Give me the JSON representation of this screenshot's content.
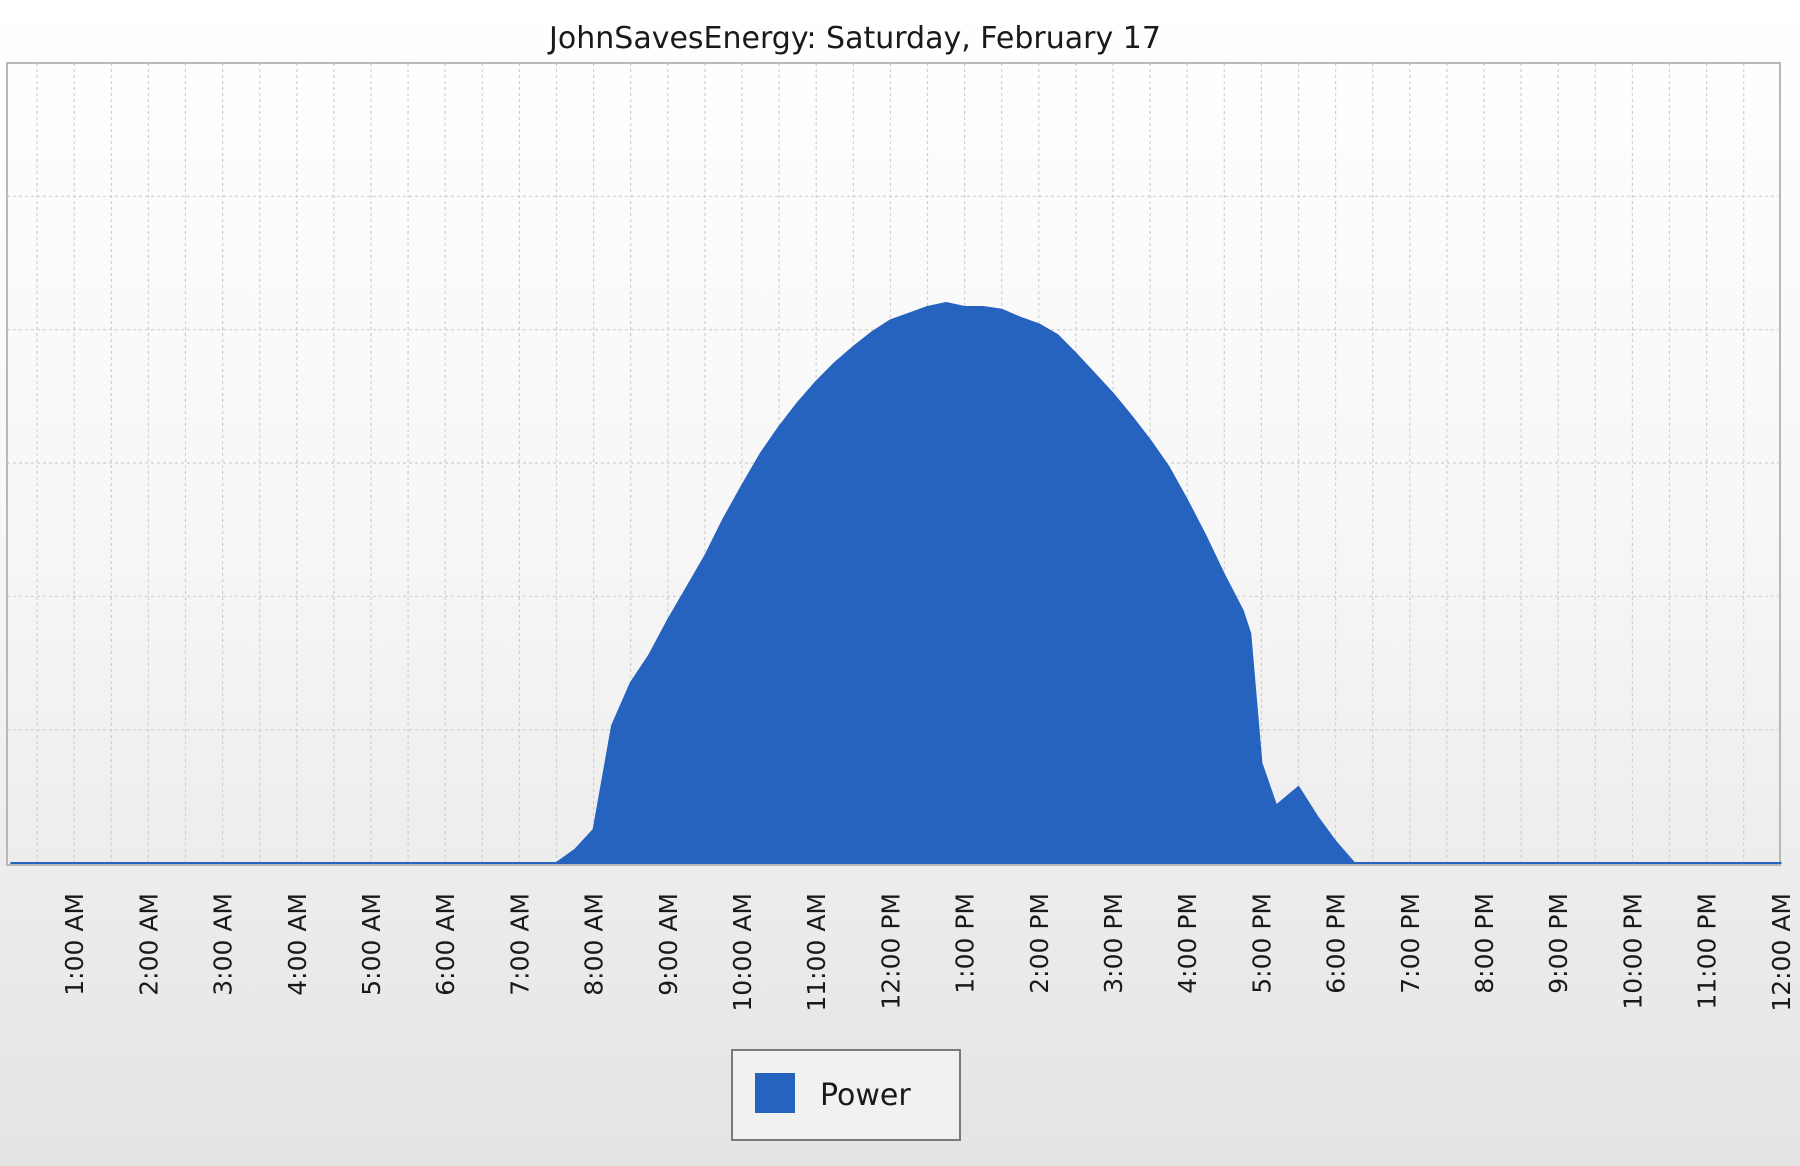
{
  "chart_data": {
    "type": "area",
    "title": "JohnSavesEnergy: Saturday, February 17",
    "xlabel": "",
    "ylabel": "",
    "x_ticks": [
      "1:00 AM",
      "2:00 AM",
      "3:00 AM",
      "4:00 AM",
      "5:00 AM",
      "6:00 AM",
      "7:00 AM",
      "8:00 AM",
      "9:00 AM",
      "10:00 AM",
      "11:00 AM",
      "12:00 PM",
      "1:00 PM",
      "2:00 PM",
      "3:00 PM",
      "4:00 PM",
      "5:00 PM",
      "6:00 PM",
      "7:00 PM",
      "8:00 PM",
      "9:00 PM",
      "10:00 PM",
      "11:00 PM",
      "12:00 AM"
    ],
    "x_range_hours": [
      0.15,
      24.0
    ],
    "ylim": [
      0,
      6
    ],
    "y_gridlines": 6,
    "grid": true,
    "legend": {
      "position": "bottom-center",
      "entries": [
        "Power"
      ]
    },
    "series": [
      {
        "name": "Power",
        "color": "#2563BF",
        "points": [
          [
            0.15,
            0
          ],
          [
            7.5,
            0
          ],
          [
            7.75,
            0.1
          ],
          [
            8.0,
            0.25
          ],
          [
            8.25,
            1.03
          ],
          [
            8.5,
            1.35
          ],
          [
            8.75,
            1.56
          ],
          [
            9.0,
            1.82
          ],
          [
            9.25,
            2.06
          ],
          [
            9.5,
            2.3
          ],
          [
            9.75,
            2.58
          ],
          [
            10.0,
            2.83
          ],
          [
            10.25,
            3.07
          ],
          [
            10.5,
            3.27
          ],
          [
            10.75,
            3.45
          ],
          [
            11.0,
            3.61
          ],
          [
            11.25,
            3.75
          ],
          [
            11.5,
            3.87
          ],
          [
            11.75,
            3.98
          ],
          [
            12.0,
            4.07
          ],
          [
            12.25,
            4.12
          ],
          [
            12.5,
            4.17
          ],
          [
            12.75,
            4.2
          ],
          [
            13.0,
            4.17
          ],
          [
            13.25,
            4.17
          ],
          [
            13.5,
            4.15
          ],
          [
            13.75,
            4.09
          ],
          [
            14.0,
            4.04
          ],
          [
            14.25,
            3.96
          ],
          [
            14.5,
            3.82
          ],
          [
            14.75,
            3.67
          ],
          [
            15.0,
            3.52
          ],
          [
            15.25,
            3.35
          ],
          [
            15.5,
            3.17
          ],
          [
            15.75,
            2.97
          ],
          [
            16.0,
            2.72
          ],
          [
            16.25,
            2.45
          ],
          [
            16.5,
            2.16
          ],
          [
            16.75,
            1.89
          ],
          [
            16.85,
            1.72
          ],
          [
            17.0,
            0.75
          ],
          [
            17.2,
            0.43
          ],
          [
            17.5,
            0.57
          ],
          [
            17.75,
            0.35
          ],
          [
            18.0,
            0.16
          ],
          [
            18.25,
            0.0
          ],
          [
            24.0,
            0
          ]
        ]
      }
    ]
  }
}
